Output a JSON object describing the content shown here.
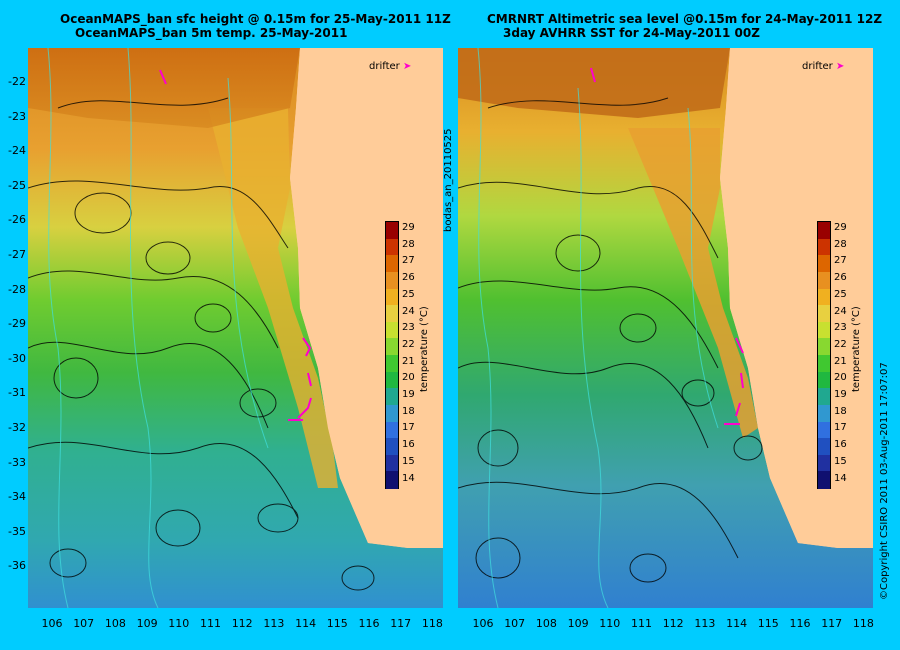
{
  "left_panel": {
    "title_line1": "OceanMAPS_ban sfc height @ 0.15m for 25-May-2011 11Z",
    "title_line2": "OceanMAPS_ban 5m temp. 25-May-2011"
  },
  "right_panel": {
    "title_line1": "CMRNRT Altimetric sea level  @0.15m  for 24-May-2011 12Z",
    "title_line2": "3day AVHRR SST for 24-May-2011 00Z"
  },
  "middle_vertical_label": "bodas_an_20110525",
  "copyright_label": "©Copyright CSIRO 2011   03-Aug-2011 17:07:07",
  "drifter_label": "drifter",
  "colorbar": {
    "title": "temperature (°C)",
    "ticks": [
      "29",
      "28",
      "27",
      "26",
      "25",
      "24",
      "23",
      "22",
      "21",
      "20",
      "19",
      "18",
      "17",
      "16",
      "15",
      "14"
    ],
    "colors": [
      "#990000",
      "#cc3300",
      "#dd6600",
      "#e89020",
      "#f0b020",
      "#e8d040",
      "#c8e030",
      "#88d830",
      "#40c830",
      "#20b840",
      "#20a890",
      "#3098d0",
      "#3070e0",
      "#2050c0",
      "#2030a0",
      "#101070"
    ]
  },
  "y_labels": [
    "-22",
    "-23",
    "-24",
    "-25",
    "-26",
    "-27",
    "-28",
    "-29",
    "-30",
    "-31",
    "-32",
    "-33",
    "-34",
    "-35",
    "-36"
  ],
  "x_labels": [
    "106",
    "107",
    "108",
    "109",
    "110",
    "111",
    "112",
    "113",
    "114",
    "115",
    "116",
    "117",
    "118"
  ],
  "map_extent": {
    "lon": [
      105.3,
      118.3
    ],
    "lat": [
      -36.6,
      -21.5
    ]
  }
}
